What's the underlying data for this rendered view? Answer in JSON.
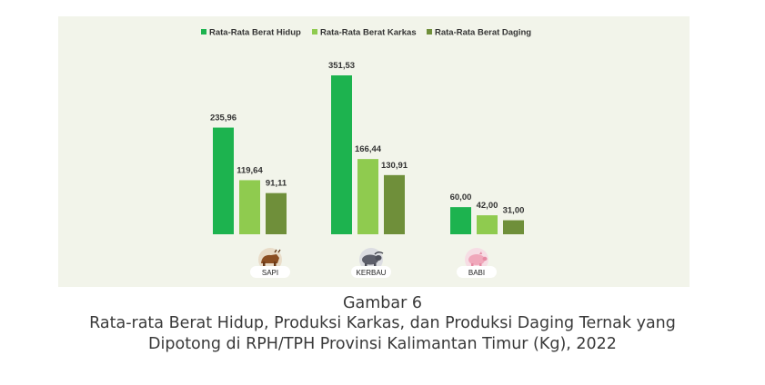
{
  "chart_data": {
    "type": "bar",
    "categories": [
      "SAPI",
      "KERBAU",
      "BABI"
    ],
    "series": [
      {
        "name": "Rata-Rata Berat Hidup",
        "values": [
          235.96,
          351.53,
          60.0
        ],
        "labels": [
          "235,96",
          "351,53",
          "60,00"
        ]
      },
      {
        "name": "Rata-Rata Berat Karkas",
        "values": [
          119.64,
          166.44,
          42.0
        ],
        "labels": [
          "119,64",
          "166,44",
          "42,00"
        ]
      },
      {
        "name": "Rata-Rata Berat Daging",
        "values": [
          91.11,
          130.91,
          31.0
        ],
        "labels": [
          "91,11",
          "130,91",
          "31,00"
        ]
      }
    ],
    "ylim": [
      0,
      351.53
    ],
    "legend_position": "top",
    "grid": false,
    "colors": [
      "#1db34f",
      "#8fcb4f",
      "#6f8f3a"
    ],
    "category_icons": [
      "cow-icon",
      "buffalo-icon",
      "pig-icon"
    ]
  },
  "caption": {
    "figure_number": "Gambar 6",
    "title_line1": "Rata-rata Berat Hidup, Produksi Karkas, dan Produksi Daging Ternak yang",
    "title_line2": "Dipotong di RPH/TPH Provinsi Kalimantan Timur (Kg), 2022"
  },
  "colors": {
    "panel_background": "#f2f4ea",
    "caption_text": "#3a3a3a"
  }
}
